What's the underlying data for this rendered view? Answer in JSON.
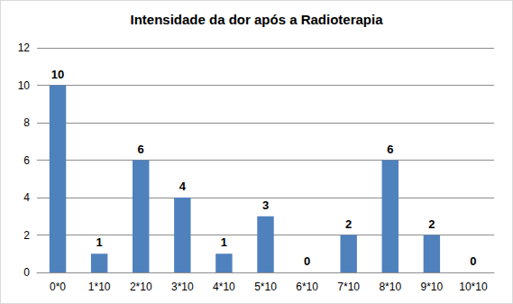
{
  "chart_data": {
    "type": "bar",
    "title": "Intensidade da dor após a Radioterapia",
    "categories": [
      "0*0",
      "1*10",
      "2*10",
      "3*10",
      "4*10",
      "5*10",
      "6*10",
      "7*10",
      "8*10",
      "9*10",
      "10*10"
    ],
    "values": [
      10,
      1,
      6,
      4,
      1,
      3,
      0,
      2,
      6,
      2,
      0
    ],
    "color": "#4f81bd",
    "ylim": [
      0,
      12
    ],
    "yticks": [
      0,
      2,
      4,
      6,
      8,
      10,
      12
    ],
    "grid": true,
    "data_labels": true
  }
}
